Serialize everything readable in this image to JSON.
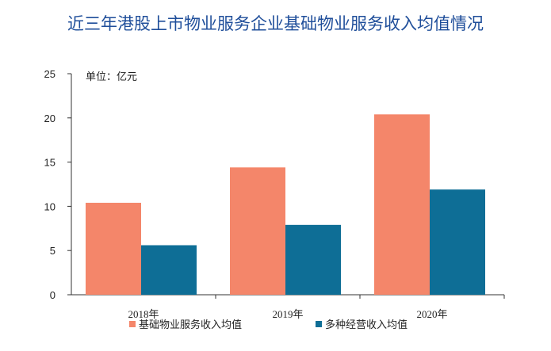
{
  "chart_data": {
    "type": "bar",
    "title": "近三年港股上市物业服务企业基础物业服务收入均值情况",
    "unit_label": "单位：亿元",
    "categories": [
      "2018年",
      "2019年",
      "2020年"
    ],
    "ylim": [
      0,
      25
    ],
    "yticks": [
      "0",
      "5",
      "10",
      "15",
      "20",
      "25"
    ],
    "grid": false,
    "legend_position": "bottom",
    "series": [
      {
        "name": "基础物业服务收入均值",
        "color": "#f4866a",
        "values": [
          10.4,
          14.4,
          20.4
        ]
      },
      {
        "name": "多种经营收入均值",
        "color": "#0e6e96",
        "values": [
          5.6,
          7.9,
          11.9
        ]
      }
    ]
  }
}
